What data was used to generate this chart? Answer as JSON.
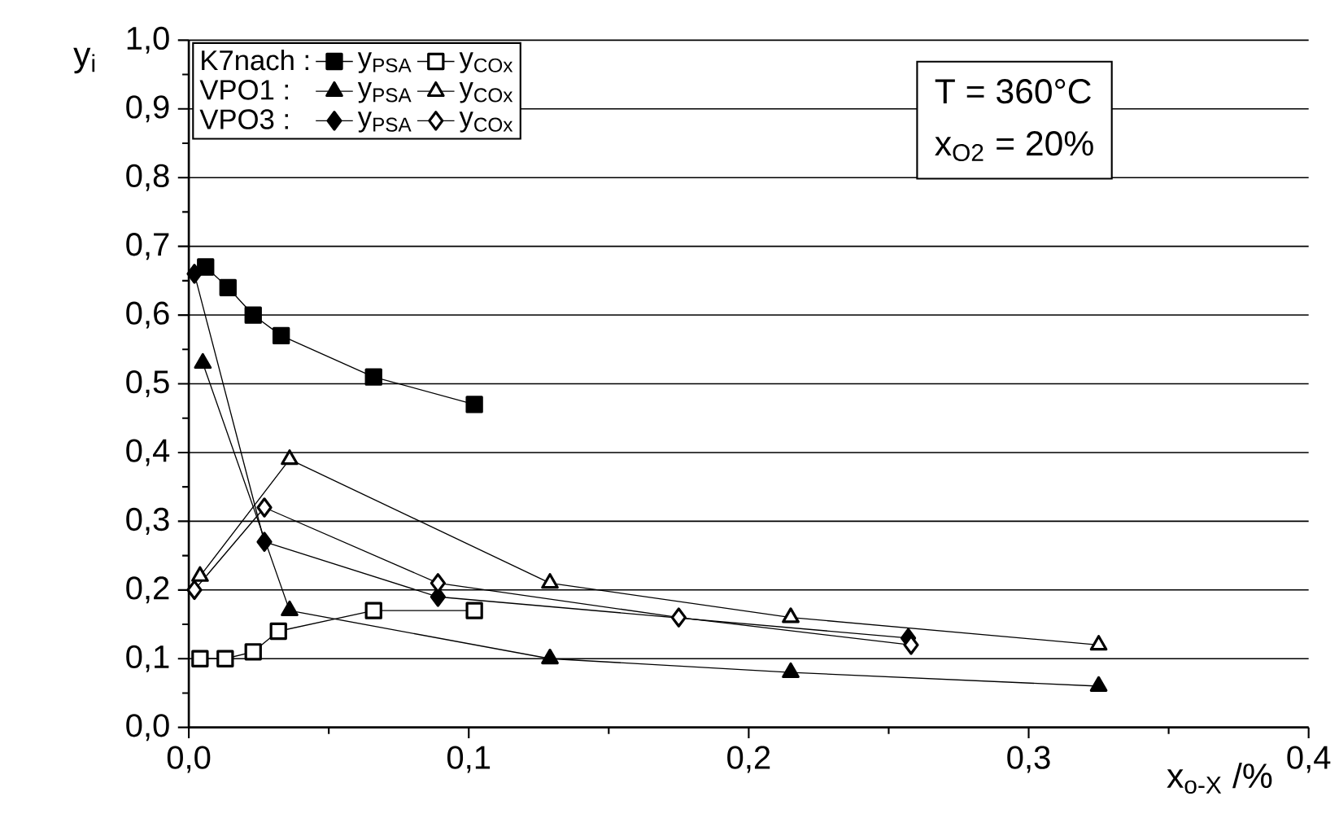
{
  "chart_data": {
    "type": "line",
    "xlabel": "x$_{o-X}$ /%",
    "ylabel": "y$_{i}$",
    "xlim": [
      0,
      0.4
    ],
    "ylim": [
      0,
      1.0
    ],
    "xticks": [
      {
        "value": 0,
        "label": "0,0"
      },
      {
        "value": 0.1,
        "label": "0,1"
      },
      {
        "value": 0.2,
        "label": "0,2"
      },
      {
        "value": 0.3,
        "label": "0,3"
      },
      {
        "value": 0.4,
        "label": "0,4"
      }
    ],
    "yticks": [
      {
        "value": 0,
        "label": "0,0"
      },
      {
        "value": 0.1,
        "label": "0,1"
      },
      {
        "value": 0.2,
        "label": "0,2"
      },
      {
        "value": 0.3,
        "label": "0,3"
      },
      {
        "value": 0.4,
        "label": "0,4"
      },
      {
        "value": 0.5,
        "label": "0,5"
      },
      {
        "value": 0.6,
        "label": "0,6"
      },
      {
        "value": 0.7,
        "label": "0,7"
      },
      {
        "value": 0.8,
        "label": "0,8"
      },
      {
        "value": 0.9,
        "label": "0,9"
      },
      {
        "value": 1.0,
        "label": "1,0"
      }
    ],
    "grid": "y",
    "legend": "top left",
    "annotations": [
      "K7nach :",
      "VPO1 :",
      "VPO3 :",
      "T  = 360°C",
      "x$_{O2}$ =  20%"
    ],
    "series": [
      {
        "name": "y$_{PSA}$",
        "color": "#000000",
        "marker": "square",
        "x": [
          0.006,
          0.014,
          0.023,
          0.033,
          0.066,
          0.102
        ],
        "values": [
          0.67,
          0.64,
          0.6,
          0.57,
          0.51,
          0.47
        ]
      },
      {
        "name": "y$_{COx}$",
        "color": "#ffffff",
        "marker": "square",
        "x": [
          0.004,
          0.013,
          0.023,
          0.032,
          0.066,
          0.102
        ],
        "values": [
          0.1,
          0.1,
          0.11,
          0.14,
          0.17,
          0.17
        ]
      },
      {
        "name": "y$_{PSA}$",
        "color": "#000000",
        "marker": "triangle",
        "x": [
          0.005,
          0.036,
          0.129,
          0.215,
          0.325
        ],
        "values": [
          0.53,
          0.17,
          0.1,
          0.08,
          0.06
        ]
      },
      {
        "name": "y$_{COx}$",
        "color": "#ffffff",
        "marker": "triangle",
        "x": [
          0.004,
          0.036,
          0.129,
          0.215,
          0.325
        ],
        "values": [
          0.22,
          0.39,
          0.21,
          0.16,
          0.12
        ]
      },
      {
        "name": "y$_{PSA}$",
        "color": "#000000",
        "marker": "diamond",
        "x": [
          0.002,
          0.027,
          0.089,
          0.175,
          0.257
        ],
        "values": [
          0.66,
          0.27,
          0.19,
          null,
          0.13
        ]
      },
      {
        "name": "y$_{COx}$",
        "color": "#ffffff",
        "marker": "diamond",
        "x": [
          0.002,
          0.027,
          0.089,
          0.175,
          0.258
        ],
        "values": [
          0.2,
          0.32,
          0.21,
          0.16,
          0.12
        ]
      }
    ]
  }
}
